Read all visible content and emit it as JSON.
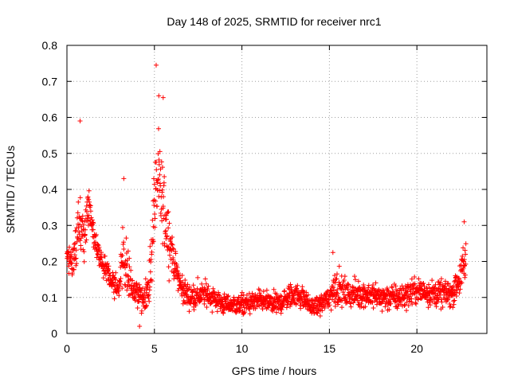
{
  "chart_data": {
    "type": "scatter",
    "title": "Day 148 of 2025, SRMTID for receiver nrc1",
    "xlabel": "GPS time / hours",
    "ylabel": "SRMTID / TECUs",
    "xlim": [
      0,
      24
    ],
    "ylim": [
      0,
      0.8
    ],
    "x_ticks": [
      0,
      5,
      10,
      15,
      20
    ],
    "x_tick_labels": [
      "0",
      "5",
      "10",
      "15",
      "20"
    ],
    "y_ticks": [
      0,
      0.1,
      0.2,
      0.3,
      0.4,
      0.5,
      0.6,
      0.7,
      0.8
    ],
    "y_tick_labels": [
      "0",
      "0.1",
      "0.2",
      "0.3",
      "0.4",
      "0.5",
      "0.6",
      "0.7",
      "0.8"
    ],
    "grid": true,
    "marker": "plus",
    "series_color": "#ff0000",
    "profile_hours": [
      0,
      0.3,
      0.7,
      1.0,
      1.3,
      1.6,
      2.0,
      2.5,
      3.0,
      3.2,
      3.4,
      3.8,
      4.3,
      4.7,
      5.0,
      5.2,
      5.5,
      5.8,
      6.1,
      6.5,
      7.0,
      8.0,
      9.0,
      10.0,
      11.0,
      12.0,
      13.0,
      13.5,
      14.0,
      14.5,
      15.0,
      15.3,
      16.0,
      17.0,
      18.0,
      19.0,
      20.0,
      21.0,
      22.0,
      22.5,
      22.8
    ],
    "profile_median": [
      0.21,
      0.2,
      0.28,
      0.3,
      0.36,
      0.25,
      0.2,
      0.15,
      0.12,
      0.22,
      0.18,
      0.12,
      0.1,
      0.12,
      0.36,
      0.42,
      0.35,
      0.28,
      0.2,
      0.13,
      0.1,
      0.11,
      0.08,
      0.08,
      0.09,
      0.08,
      0.11,
      0.1,
      0.07,
      0.08,
      0.1,
      0.13,
      0.11,
      0.11,
      0.1,
      0.1,
      0.12,
      0.11,
      0.11,
      0.16,
      0.2
    ],
    "profile_spread": [
      0.04,
      0.06,
      0.14,
      0.09,
      0.07,
      0.05,
      0.05,
      0.05,
      0.05,
      0.12,
      0.1,
      0.05,
      0.05,
      0.07,
      0.2,
      0.2,
      0.14,
      0.12,
      0.06,
      0.05,
      0.05,
      0.05,
      0.04,
      0.04,
      0.04,
      0.04,
      0.05,
      0.04,
      0.03,
      0.04,
      0.05,
      0.07,
      0.05,
      0.05,
      0.05,
      0.05,
      0.05,
      0.05,
      0.05,
      0.07,
      0.1
    ],
    "notable_points": [
      {
        "x": 0.75,
        "y": 0.59
      },
      {
        "x": 5.1,
        "y": 0.745
      },
      {
        "x": 5.25,
        "y": 0.66
      },
      {
        "x": 5.5,
        "y": 0.655
      },
      {
        "x": 3.25,
        "y": 0.43
      },
      {
        "x": 4.15,
        "y": 0.02
      },
      {
        "x": 15.2,
        "y": 0.225
      },
      {
        "x": 22.7,
        "y": 0.31
      }
    ]
  }
}
